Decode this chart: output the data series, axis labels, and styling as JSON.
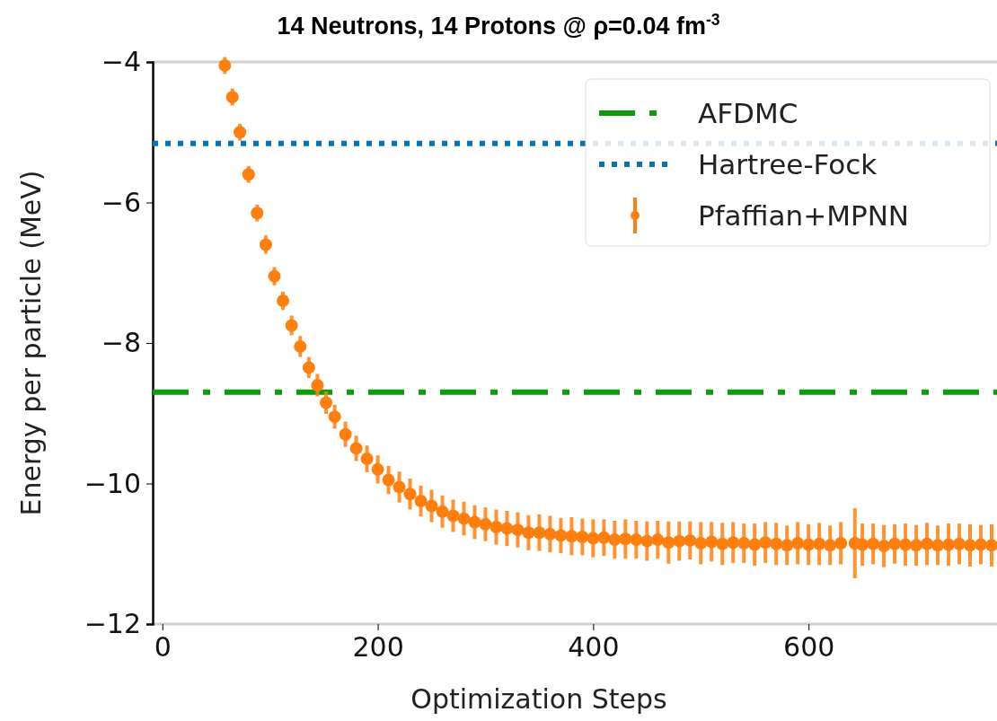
{
  "chart_data": {
    "type": "line",
    "title": "14 Neutrons, 14 Protons @ ρ=0.04 fm$^{-3}$",
    "xlabel": "Optimization Steps",
    "ylabel": "Energy per particle (MeV)",
    "xlim": [
      -9,
      775
    ],
    "xticks": [
      0,
      200,
      400,
      600
    ],
    "ylim": [
      -12,
      -4
    ],
    "yticks": [
      -12,
      -10,
      -8,
      -6,
      -4
    ],
    "grid": false,
    "legend": "top right",
    "series": [
      {
        "name": "AFDMC",
        "color": "#0a9e0a",
        "line_style": "dashdot",
        "x": [
          -9,
          775
        ],
        "values": [
          -8.7,
          -8.7
        ]
      },
      {
        "name": "Hartree-Fock",
        "color": "#0a72b8",
        "line_style": "dotted",
        "x": [
          -9,
          775
        ],
        "values": [
          -5.16,
          -5.16
        ]
      },
      {
        "name": "Pfaffian+MPNN",
        "type": "scatter",
        "color": "#ff7f0e",
        "marker": "circle",
        "x": [
          58,
          65,
          72,
          80,
          88,
          96,
          104,
          112,
          120,
          128,
          136,
          144,
          152,
          160,
          170,
          180,
          190,
          200,
          210,
          220,
          230,
          240,
          250,
          260,
          270,
          280,
          290,
          300,
          310,
          320,
          330,
          340,
          350,
          360,
          370,
          380,
          390,
          400,
          410,
          420,
          430,
          440,
          450,
          460,
          470,
          480,
          490,
          500,
          510,
          520,
          530,
          540,
          550,
          560,
          570,
          580,
          590,
          600,
          610,
          620,
          630,
          643,
          650,
          660,
          670,
          680,
          690,
          700,
          710,
          720,
          730,
          740,
          750,
          760,
          770
        ],
        "values": [
          -4.05,
          -4.5,
          -5.0,
          -5.6,
          -6.15,
          -6.6,
          -7.05,
          -7.4,
          -7.75,
          -8.05,
          -8.35,
          -8.6,
          -8.85,
          -9.05,
          -9.3,
          -9.5,
          -9.65,
          -9.8,
          -9.95,
          -10.05,
          -10.15,
          -10.25,
          -10.32,
          -10.4,
          -10.46,
          -10.5,
          -10.55,
          -10.58,
          -10.62,
          -10.64,
          -10.66,
          -10.7,
          -10.7,
          -10.72,
          -10.74,
          -10.75,
          -10.76,
          -10.78,
          -10.77,
          -10.8,
          -10.79,
          -10.8,
          -10.82,
          -10.8,
          -10.84,
          -10.82,
          -10.81,
          -10.85,
          -10.83,
          -10.86,
          -10.84,
          -10.85,
          -10.87,
          -10.84,
          -10.86,
          -10.88,
          -10.85,
          -10.87,
          -10.86,
          -10.88,
          -10.85,
          -10.85,
          -10.87,
          -10.86,
          -10.89,
          -10.86,
          -10.87,
          -10.88,
          -10.86,
          -10.88,
          -10.87,
          -10.86,
          -10.88,
          -10.87,
          -10.88
        ],
        "errors": [
          0.12,
          0.12,
          0.12,
          0.12,
          0.12,
          0.13,
          0.13,
          0.13,
          0.14,
          0.15,
          0.15,
          0.16,
          0.16,
          0.17,
          0.18,
          0.18,
          0.19,
          0.2,
          0.2,
          0.22,
          0.22,
          0.22,
          0.23,
          0.23,
          0.23,
          0.24,
          0.24,
          0.24,
          0.25,
          0.25,
          0.25,
          0.25,
          0.26,
          0.26,
          0.25,
          0.27,
          0.26,
          0.27,
          0.26,
          0.27,
          0.28,
          0.27,
          0.28,
          0.27,
          0.3,
          0.28,
          0.27,
          0.3,
          0.28,
          0.3,
          0.29,
          0.28,
          0.3,
          0.29,
          0.3,
          0.28,
          0.3,
          0.29,
          0.3,
          0.28,
          0.3,
          0.5,
          0.3,
          0.29,
          0.3,
          0.28,
          0.3,
          0.29,
          0.3,
          0.28,
          0.3,
          0.29,
          0.3,
          0.28,
          0.3
        ]
      }
    ]
  }
}
